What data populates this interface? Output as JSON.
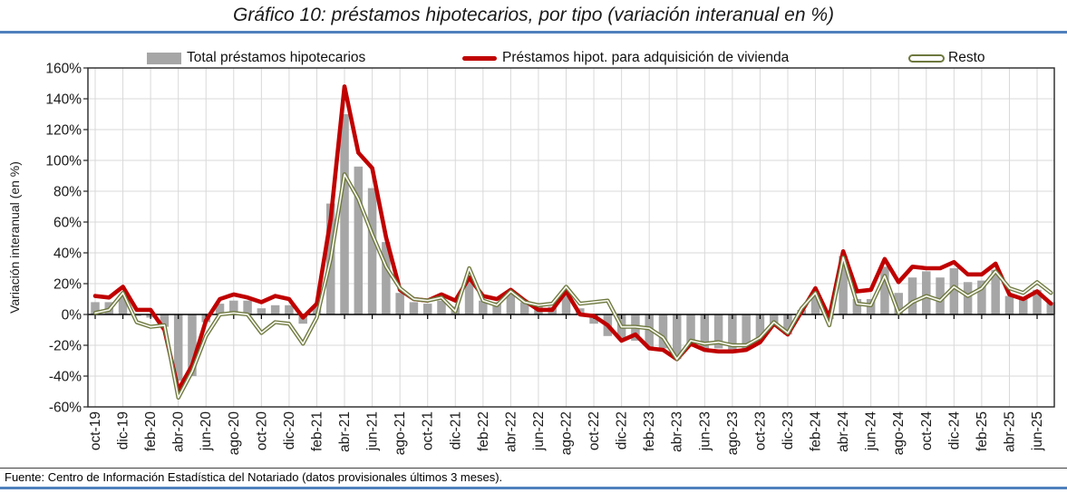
{
  "title": "Gráfico 10: préstamos hipotecarios, por tipo (variación interanual en %)",
  "legend": {
    "total": "Total préstamos hipotecarios",
    "vivienda": "Préstamos hipot. para adquisición de vivienda",
    "resto": "Resto"
  },
  "y_axis": {
    "title": "Variación interanual (en %)",
    "tick_labels": [
      "160%",
      "140%",
      "120%",
      "100%",
      "80%",
      "60%",
      "40%",
      "20%",
      "0%",
      "-20%",
      "-40%",
      "-60%"
    ],
    "max": 160,
    "min": -60,
    "step": 20
  },
  "x_axis": {
    "labels": [
      "oct-19",
      "dic-19",
      "feb-20",
      "abr-20",
      "jun-20",
      "ago-20",
      "oct-20",
      "dic-20",
      "feb-21",
      "abr-21",
      "jun-21",
      "ago-21",
      "oct-21",
      "dic-21",
      "feb-22",
      "abr-22",
      "jun-22",
      "ago-22",
      "oct-22",
      "dic-22",
      "feb-23",
      "abr-23",
      "jun-23",
      "ago-23",
      "oct-23",
      "dic-23",
      "feb-24",
      "abr-24",
      "jun-24",
      "ago-24",
      "oct-24",
      "dic-24",
      "feb-25",
      "abr-25",
      "jun-25"
    ]
  },
  "footer": "Fuente: Centro de Información Estadística del Notariado (datos provisionales últimos 3 meses).",
  "colors": {
    "bar": "#A6A6A6",
    "vivienda": "#C00000",
    "resto": "#6D783E",
    "resto_inner": "#F6F6EE",
    "grid": "#D9D9D9",
    "rule_blue": "#4F81BD",
    "axis": "#1a1a1a",
    "text": "#1a1a1a"
  },
  "chart_data": {
    "type": "combo-bar-line",
    "title": "Gráfico 10: préstamos hipotecarios, por tipo (variación interanual en %)",
    "ylabel": "Variación interanual (en %)",
    "ylim": [
      -60,
      160
    ],
    "y_step": 20,
    "y_unit": "%",
    "grid": true,
    "legend_position": "top",
    "label_every": 2,
    "x": [
      "oct-19",
      "nov-19",
      "dic-19",
      "ene-20",
      "feb-20",
      "mar-20",
      "abr-20",
      "may-20",
      "jun-20",
      "jul-20",
      "ago-20",
      "sep-20",
      "oct-20",
      "nov-20",
      "dic-20",
      "ene-21",
      "feb-21",
      "mar-21",
      "abr-21",
      "may-21",
      "jun-21",
      "jul-21",
      "ago-21",
      "sep-21",
      "oct-21",
      "nov-21",
      "dic-21",
      "ene-22",
      "feb-22",
      "mar-22",
      "abr-22",
      "may-22",
      "jun-22",
      "jul-22",
      "ago-22",
      "sep-22",
      "oct-22",
      "nov-22",
      "dic-22",
      "ene-23",
      "feb-23",
      "mar-23",
      "abr-23",
      "may-23",
      "jun-23",
      "jul-23",
      "ago-23",
      "sep-23",
      "oct-23",
      "nov-23",
      "dic-23",
      "ene-24",
      "feb-24",
      "mar-24",
      "abr-24",
      "may-24",
      "jun-24",
      "jul-24",
      "ago-24",
      "sep-24",
      "oct-24",
      "nov-24",
      "dic-24",
      "ene-25",
      "feb-25",
      "mar-25",
      "abr-25",
      "may-25",
      "jun-25",
      "jul-25"
    ],
    "series": [
      {
        "name": "Total préstamos hipotecarios",
        "type": "bar",
        "color": "#A6A6A6",
        "values": [
          8,
          8,
          13,
          -1,
          -2,
          -8,
          -43,
          -40,
          -5,
          7,
          9,
          9,
          4,
          6,
          6,
          -6,
          5,
          72,
          130,
          96,
          82,
          47,
          14,
          8,
          7,
          9,
          5,
          24,
          9,
          8,
          14,
          8,
          5,
          5,
          13,
          4,
          -6,
          -14,
          -16,
          -17,
          -21,
          -22,
          -29,
          -19,
          -22,
          -22,
          -23,
          -22,
          -17,
          -6,
          -13,
          3,
          13,
          -3,
          38,
          10,
          10,
          31,
          14,
          24,
          28,
          24,
          30,
          21,
          22,
          29,
          12,
          10,
          16,
          8
        ]
      },
      {
        "name": "Préstamos hipot. para adquisición de vivienda",
        "type": "line",
        "color": "#C00000",
        "values": [
          12,
          11,
          18,
          3,
          3,
          -10,
          -49,
          -33,
          -4,
          10,
          13,
          11,
          8,
          12,
          10,
          -2,
          7,
          62,
          148,
          105,
          95,
          50,
          16,
          10,
          9,
          13,
          9,
          24,
          12,
          10,
          16,
          9,
          3,
          3,
          15,
          0,
          -1,
          -7,
          -17,
          -13,
          -22,
          -23,
          -29,
          -19,
          -23,
          -24,
          -24,
          -23,
          -18,
          -6,
          -13,
          2,
          17,
          -2,
          41,
          15,
          16,
          36,
          21,
          31,
          30,
          30,
          34,
          26,
          26,
          33,
          13,
          10,
          15,
          7
        ]
      },
      {
        "name": "Resto",
        "type": "line",
        "style": "double",
        "color": "#6D783E",
        "values": [
          1,
          3,
          14,
          -5,
          -8,
          -7,
          -54,
          -37,
          -14,
          0,
          1,
          0,
          -12,
          -5,
          -6,
          -19,
          -2,
          36,
          91,
          75,
          52,
          31,
          17,
          10,
          9,
          11,
          2,
          30,
          9,
          6,
          15,
          8,
          6,
          7,
          18,
          7,
          8,
          9,
          -8,
          -8,
          -9,
          -15,
          -29,
          -17,
          -19,
          -18,
          -20,
          -20,
          -15,
          -5,
          -12,
          4,
          14,
          -7,
          37,
          7,
          6,
          25,
          1,
          8,
          12,
          9,
          18,
          12,
          17,
          28,
          17,
          14,
          21,
          14
        ]
      }
    ]
  }
}
